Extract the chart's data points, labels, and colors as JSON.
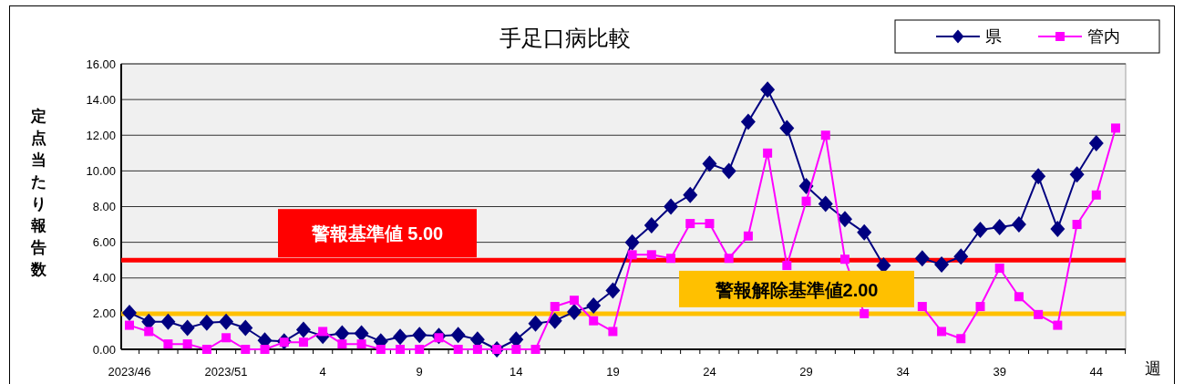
{
  "chart_data": {
    "type": "line",
    "title": "手足口病比較",
    "xlabel": "週",
    "ylabel": "定点当たり報告数",
    "categories": [
      "2023/46",
      null,
      null,
      null,
      null,
      "2023/51",
      null,
      null,
      null,
      null,
      "4",
      null,
      null,
      null,
      null,
      "9",
      null,
      null,
      null,
      null,
      "14",
      null,
      null,
      null,
      null,
      "19",
      null,
      null,
      null,
      null,
      "24",
      null,
      null,
      null,
      null,
      "29",
      null,
      null,
      null,
      null,
      "34",
      null,
      null,
      null,
      null,
      "39",
      null,
      null,
      null,
      null,
      "44",
      null
    ],
    "series": [
      {
        "name": "県",
        "color": "#000080",
        "marker": "diamond",
        "values": [
          2.05,
          1.55,
          1.55,
          1.2,
          1.5,
          1.55,
          1.2,
          0.5,
          0.45,
          1.1,
          0.75,
          0.9,
          0.9,
          0.45,
          0.7,
          0.8,
          0.75,
          0.8,
          0.55,
          0.0,
          0.55,
          1.45,
          1.6,
          2.1,
          2.45,
          3.3,
          6.0,
          6.95,
          8.0,
          8.65,
          10.4,
          10.0,
          12.75,
          14.55,
          12.4,
          9.15,
          8.15,
          7.3,
          6.55,
          4.7,
          null,
          5.1,
          4.75,
          5.2,
          6.7,
          6.85,
          7.0,
          9.7,
          6.75,
          9.8,
          11.55,
          null
        ]
      },
      {
        "name": "管内",
        "color": "#ff00ff",
        "marker": "square",
        "values": [
          1.35,
          1.0,
          0.3,
          0.3,
          0.0,
          0.65,
          0.0,
          0.0,
          0.4,
          0.4,
          1.0,
          0.3,
          0.3,
          0.0,
          0.0,
          0.0,
          0.65,
          0.0,
          0.0,
          0.0,
          0.0,
          0.0,
          2.4,
          2.75,
          1.6,
          1.0,
          5.3,
          5.3,
          5.1,
          7.05,
          7.05,
          5.1,
          6.35,
          11.0,
          4.7,
          8.3,
          12.0,
          5.05,
          2.0,
          null,
          null,
          2.4,
          1.0,
          0.6,
          2.4,
          4.55,
          2.95,
          1.95,
          1.35,
          7.0,
          8.65,
          12.4
        ]
      }
    ],
    "ylim": [
      0,
      16
    ],
    "yticks": [
      {
        "value": 0,
        "label": "0.00"
      },
      {
        "value": 2,
        "label": "2.00"
      },
      {
        "value": 4,
        "label": "4.00"
      },
      {
        "value": 6,
        "label": "6.00"
      },
      {
        "value": 8,
        "label": "8.00"
      },
      {
        "value": 10,
        "label": "10.00"
      },
      {
        "value": 12,
        "label": "12.00"
      },
      {
        "value": 14,
        "label": "14.00"
      },
      {
        "value": 16,
        "label": "16.00"
      }
    ],
    "ref_lines": [
      {
        "axis": "y",
        "value": 5,
        "label": "警報基準値 5.00",
        "color": "#ff0000"
      },
      {
        "axis": "y",
        "value": 2,
        "label": "警報解除基準値2.00",
        "color": "#ffc000"
      }
    ],
    "grid": "y",
    "legend": "top right"
  }
}
